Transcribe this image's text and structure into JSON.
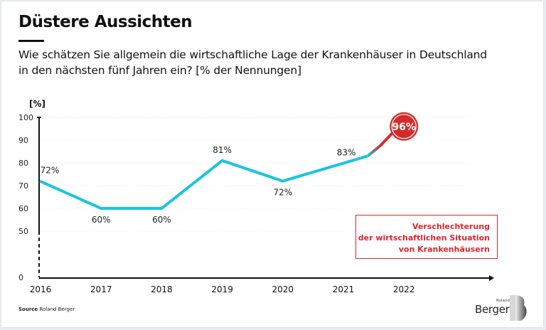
{
  "header": {
    "title": "Düstere Aussichten",
    "subtitle_line1": "Wie schätzen Sie allgemein die wirtschaftliche Lage der Krankenhäuser in Deutschland",
    "subtitle_line2": "in den nächsten fünf Jahren ein? [% der Nennungen]"
  },
  "note": {
    "line1": "Verschlechterung",
    "line2": "der wirtschaftlichen Situation",
    "line3": "von Krankenhäusern"
  },
  "footer": {
    "source_label": "Source",
    "source_text": "Roland Berger",
    "logo_small": "Roland",
    "logo_big": "Berger"
  },
  "colors": {
    "line": "#1cc4e0",
    "highlight": "#d52b2b",
    "axis": "#111111"
  },
  "chart_data": {
    "type": "line",
    "title": "Düstere Aussichten",
    "ylabel": "[%]",
    "xlabel": "",
    "ylim": [
      0,
      100
    ],
    "y_axis_break": [
      0,
      50
    ],
    "yticks": [
      0,
      50,
      60,
      70,
      80,
      90,
      100
    ],
    "categories": [
      "2016",
      "2017",
      "2018",
      "2019",
      "2020",
      "2021",
      "2022"
    ],
    "grid": true,
    "series": [
      {
        "name": "Verschlechterung der wirtschaftlichen Situation von Krankenhäusern",
        "points": [
          {
            "x": 2016.0,
            "value": 72,
            "label": "72%"
          },
          {
            "x": 2017.0,
            "value": 60,
            "label": "60%"
          },
          {
            "x": 2018.0,
            "value": 60,
            "label": "60%"
          },
          {
            "x": 2019.0,
            "value": 81,
            "label": "81%"
          },
          {
            "x": 2020.0,
            "value": 72,
            "label": "72%"
          },
          {
            "x": 2021.4,
            "value": 83,
            "label": "83%"
          },
          {
            "x": 2022.0,
            "value": 96,
            "label": "96%",
            "highlight": true
          }
        ]
      }
    ]
  }
}
